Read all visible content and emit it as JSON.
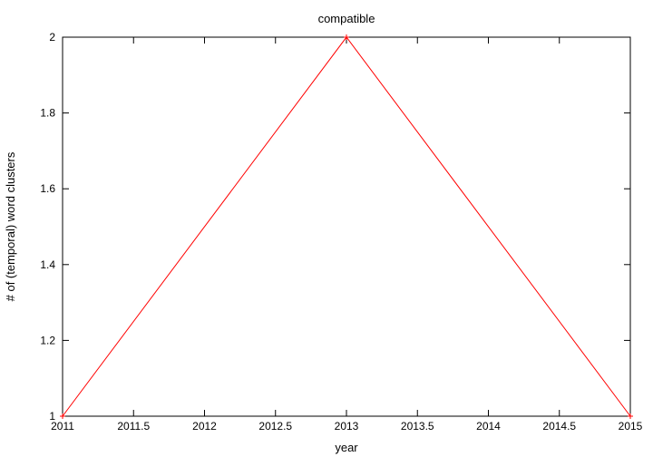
{
  "chart_data": {
    "type": "line",
    "title": "compatible",
    "xlabel": "year",
    "ylabel": "# of (temporal) word clusters",
    "xlim": [
      2011,
      2015
    ],
    "ylim": [
      1,
      2
    ],
    "xticks": [
      "2011",
      "2011.5",
      "2012",
      "2012.5",
      "2013",
      "2013.5",
      "2014",
      "2014.5",
      "2015"
    ],
    "yticks": [
      "1",
      "1.2",
      "1.4",
      "1.6",
      "1.8",
      "2"
    ],
    "grid": false,
    "series": [
      {
        "color": "#ff0000",
        "x": [
          2011,
          2013,
          2015
        ],
        "y": [
          1,
          2,
          1
        ]
      }
    ]
  }
}
